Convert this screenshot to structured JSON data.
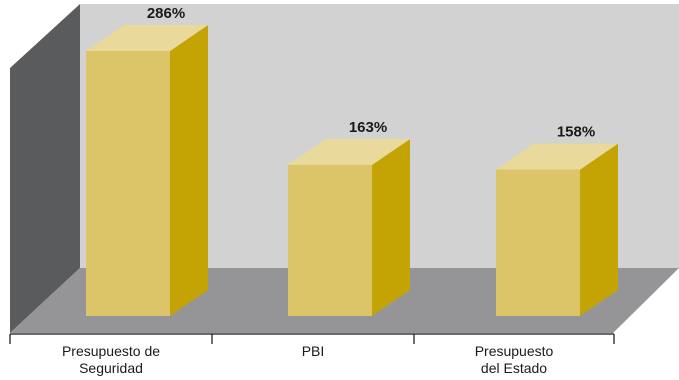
{
  "chart_data": {
    "type": "bar",
    "categories": [
      [
        "Presupuesto de",
        "Seguridad"
      ],
      [
        "PBI"
      ],
      [
        "Presupuesto",
        "del Estado"
      ]
    ],
    "values": [
      286,
      163,
      158
    ],
    "data_labels": [
      "286%",
      "163%",
      "158%"
    ],
    "ylim": [
      0,
      300
    ],
    "grid": false,
    "legend": "none",
    "colors": {
      "bar_front": "#dcc568",
      "bar_side": "#c4a305",
      "bar_top": "#e9d99a",
      "back_wall": "#d2d2d2",
      "side_wall": "#5a5b5d",
      "floor": "#959597"
    }
  }
}
